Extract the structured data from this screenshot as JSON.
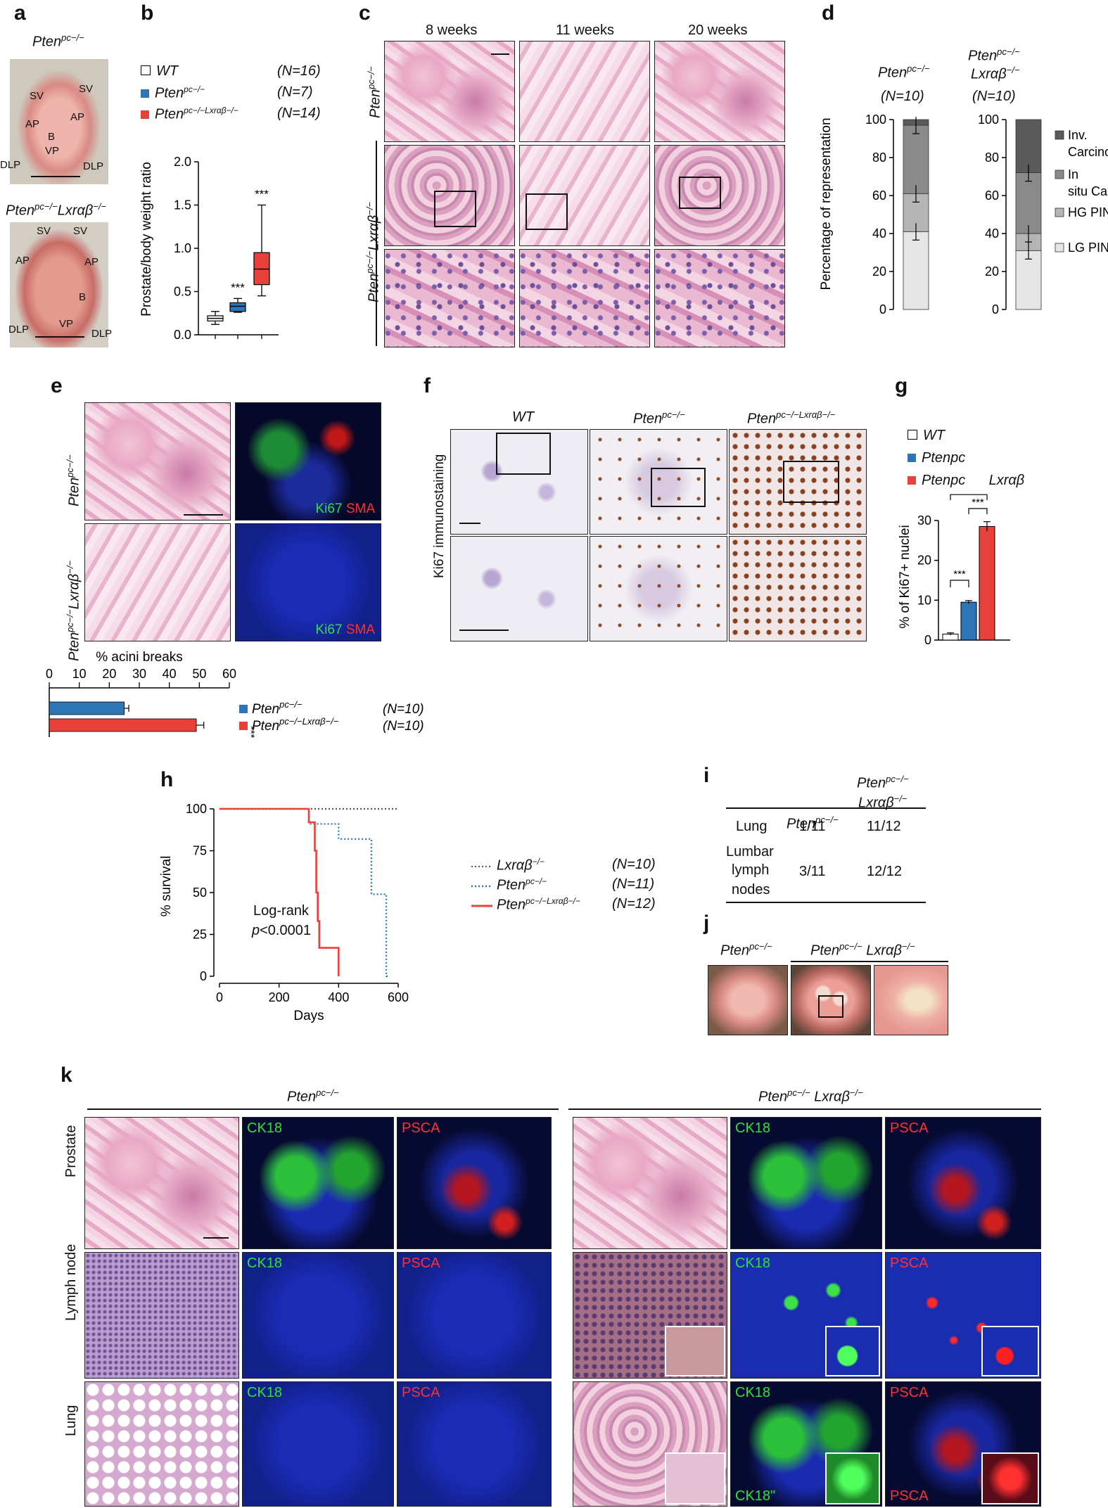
{
  "panels": {
    "a": {
      "label": "a",
      "top_title_main": "Pten",
      "top_title_sup": "pc−/−",
      "bottom_title_main": "Pten",
      "bottom_title_sup": "pc−/−",
      "bottom_title_suffix": "Lxrαβ",
      "bottom_title_suffix_sup": "−/−",
      "top_organs": [
        "SV",
        "SV",
        "AP",
        "AP",
        "B",
        "VP",
        "DLP",
        "DLP"
      ],
      "bottom_organs": [
        "SV",
        "SV",
        "AP",
        "AP",
        "B",
        "VP",
        "DLP",
        "DLP"
      ]
    },
    "b": {
      "label": "b",
      "legend": [
        {
          "name": "WT",
          "sup": "",
          "n": "(N=16)",
          "color": "#ffffff"
        },
        {
          "name": "Pten",
          "sup": "pc−/−",
          "n": "(N=7)",
          "color": "#2e75b6"
        },
        {
          "name": "Pten",
          "sup": "pc−/−Lxrαβ−/−",
          "n": "(N=14)",
          "color": "#e8403a"
        }
      ],
      "ylabel": "Prostate/body weight ratio",
      "yticks": [
        "0.0",
        "0.5",
        "1.0",
        "1.5",
        "2.0"
      ],
      "stars": [
        "***",
        "***"
      ]
    },
    "c": {
      "label": "c",
      "columns": [
        "8 weeks",
        "11 weeks",
        "20 weeks"
      ],
      "row1_label_main": "Pten",
      "row1_label_sup": "pc−/−",
      "row2_label_main": "Pten",
      "row2_label_sup": "pc−/−",
      "row2_label_suffix": "Lxrαβ",
      "row2_label_suffix_sup": "−/−"
    },
    "d": {
      "label": "d",
      "col1_title_main": "Pten",
      "col1_title_sup": "pc−/−",
      "col1_n": "(N=10)",
      "col2_title_main": "Pten",
      "col2_title_sup": "pc−/−",
      "col2_title_line2": "Lxrαβ",
      "col2_title_line2_sup": "−/−",
      "col2_n": "(N=10)",
      "ylabel": "Percentage of representation",
      "yticks": [
        "0",
        "20",
        "40",
        "60",
        "80",
        "100"
      ],
      "legend": [
        "Inv. Carcinoma",
        "In situ Carcinoma",
        "HG PIN",
        "LG PIN"
      ]
    },
    "e": {
      "label": "e",
      "row1_label_main": "Pten",
      "row1_label_sup": "pc−/−",
      "row2_label_main": "Pten",
      "row2_label_sup": "pc−/−",
      "row2_label_suffix": "Lxrαβ",
      "row2_label_suffix_sup": "−/−",
      "stain_green": "Ki67",
      "stain_red": "SMA",
      "bar_title": "% acini breaks",
      "bar_ticks": [
        "0",
        "10",
        "20",
        "30",
        "40",
        "50",
        "60"
      ],
      "bar_legend": [
        {
          "name": "Pten",
          "sup": "pc−/−",
          "n": "(N=10)",
          "color": "#2e75b6"
        },
        {
          "name": "Pten",
          "sup": "pc−/−Lxrαβ−/−",
          "n": "(N=10)",
          "color": "#e8403a"
        }
      ],
      "star": "***"
    },
    "f": {
      "label": "f",
      "columns": [
        "WT",
        "Pten",
        "Pten"
      ],
      "col2_sup": "pc−/−",
      "col3_sup": "pc−/−Lxrαβ−/−",
      "row_label": "Ki67 immunostaining"
    },
    "g": {
      "label": "g",
      "legend": [
        {
          "name": "WT",
          "color": "#ffffff"
        },
        {
          "name": "Ptenpc",
          "color": "#2e75b6"
        },
        {
          "name": "Ptenpc      Lxrαβ",
          "color": "#e8403a"
        }
      ],
      "ylabel": "% of Ki67+ nuclei",
      "yticks": [
        "0",
        "10",
        "20",
        "30"
      ],
      "stars": [
        "***",
        "***",
        "***"
      ]
    },
    "h": {
      "label": "h",
      "ylabel": "% survival",
      "xlabel": "Days",
      "yticks": [
        "0",
        "25",
        "50",
        "75",
        "100"
      ],
      "xticks": [
        "0",
        "200",
        "400",
        "600"
      ],
      "annotation_line1": "Log-rank",
      "annotation_line2_italic": "p",
      "annotation_line2": "<0.0001",
      "legend": [
        {
          "name": "Lxrαβ",
          "sup": "−/−",
          "n": "(N=10)",
          "color": "#555555",
          "style": "dotted"
        },
        {
          "name": "Pten",
          "sup": "pc−/−",
          "n": "(N=11)",
          "color": "#2e75b6",
          "style": "dotted"
        },
        {
          "name": "Pten",
          "sup": "pc−/−Lxrαβ−/−",
          "n": "(N=12)",
          "color": "#e8403a",
          "style": "solid"
        }
      ]
    },
    "i": {
      "label": "i",
      "col1_main": "Pten",
      "col1_sup": "pc−/−",
      "col2_line1_main": "Pten",
      "col2_line1_sup": "pc−/−",
      "col2_line2_main": "Lxrαβ",
      "col2_line2_sup": "−/−",
      "rows": [
        {
          "label": "Lung",
          "c1": "1/11",
          "c2": "11/12"
        },
        {
          "label": "Lumbar lymph nodes",
          "c1": "3/11",
          "c2": "12/12"
        }
      ],
      "row2_lines": [
        "Lumbar",
        "lymph",
        "nodes"
      ]
    },
    "j": {
      "label": "j",
      "left_main": "Pten",
      "left_sup": "pc−/−",
      "right_main": "Pten",
      "right_sup": "pc−/−",
      "right_suffix": "Lxrαβ",
      "right_suffix_sup": "−/−"
    },
    "k": {
      "label": "k",
      "group1_main": "Pten",
      "group1_sup": "pc−/−",
      "group2_main": "Pten",
      "group2_sup": "pc−/−",
      "group2_suffix": "Lxrαβ",
      "group2_suffix_sup": "−/−",
      "rows": [
        "Prostate",
        "Lymph node",
        "Lung"
      ],
      "stain_green": "CK18",
      "stain_red": "PSCA",
      "stain_green_alt": "CK18\"",
      "stain_red_alt": "PSCA"
    }
  },
  "chart_data": [
    {
      "type": "box",
      "panel": "b",
      "categories": [
        "WT",
        "Pten pc−/−",
        "Pten pc−/− Lxrαβ−/−"
      ],
      "ylabel": "Prostate/body weight ratio",
      "ylim": [
        0,
        2
      ],
      "boxes": [
        {
          "min": 0.12,
          "q1": 0.16,
          "median": 0.19,
          "q3": 0.22,
          "max": 0.27
        },
        {
          "min": 0.26,
          "q1": 0.27,
          "median": 0.33,
          "q3": 0.37,
          "max": 0.42
        },
        {
          "min": 0.45,
          "q1": 0.58,
          "median": 0.76,
          "q3": 0.95,
          "max": 1.5
        }
      ]
    },
    {
      "type": "bar",
      "panel": "d",
      "stacked": true,
      "ylabel": "Percentage of representation",
      "ylim": [
        0,
        100
      ],
      "categories": [
        "Pten pc−/−",
        "Pten pc−/− Lxrαβ−/−"
      ],
      "series": [
        {
          "name": "LG PIN",
          "values": [
            41,
            31
          ],
          "color": "#e6e6e6"
        },
        {
          "name": "HG PIN",
          "values": [
            20,
            9
          ],
          "color": "#b5b5b5"
        },
        {
          "name": "In situ Carcinoma",
          "values": [
            36,
            32
          ],
          "color": "#8a8a8a"
        },
        {
          "name": "Inv. Carcinoma",
          "values": [
            3,
            28
          ],
          "color": "#5a5a5a"
        }
      ]
    },
    {
      "type": "bar",
      "panel": "e",
      "orientation": "horizontal",
      "title": "% acini breaks",
      "xlim": [
        0,
        60
      ],
      "categories": [
        "Pten pc−/−",
        "Pten pc−/− Lxrαβ−/−"
      ],
      "values": [
        25,
        49
      ],
      "errors": [
        1.5,
        2.5
      ],
      "colors": [
        "#2e75b6",
        "#e8403a"
      ]
    },
    {
      "type": "bar",
      "panel": "g",
      "ylabel": "% of Ki67+ nuclei",
      "ylim": [
        0,
        30
      ],
      "categories": [
        "WT",
        "Ptenpc",
        "Ptenpc Lxrαβ"
      ],
      "values": [
        1.5,
        9.5,
        28.5
      ],
      "errors": [
        0.3,
        0.4,
        1.2
      ],
      "colors": [
        "#ffffff",
        "#2e75b6",
        "#e8403a"
      ]
    },
    {
      "type": "line",
      "panel": "h",
      "xlabel": "Days",
      "ylabel": "% survival",
      "xlim": [
        0,
        600
      ],
      "ylim": [
        0,
        100
      ],
      "series": [
        {
          "name": "Lxrαβ−/−",
          "style": "dotted",
          "color": "#555555",
          "x": [
            0,
            600
          ],
          "y": [
            100,
            100
          ]
        },
        {
          "name": "Pten pc−/−",
          "style": "dotted",
          "color": "#2e75b6",
          "x": [
            0,
            300,
            300,
            400,
            400,
            430,
            430,
            510,
            510,
            530,
            530,
            560,
            560,
            570
          ],
          "y": [
            100,
            100,
            91,
            91,
            82,
            82,
            82,
            82,
            49,
            49,
            49,
            49,
            0,
            0
          ]
        },
        {
          "name": "Pten pc−/− Lxrαβ−/−",
          "style": "solid",
          "color": "#e8403a",
          "x": [
            0,
            300,
            300,
            320,
            320,
            325,
            325,
            330,
            330,
            335,
            335,
            400,
            400
          ],
          "y": [
            100,
            100,
            92,
            92,
            75,
            75,
            50,
            50,
            33,
            33,
            17,
            17,
            0
          ]
        }
      ]
    }
  ]
}
